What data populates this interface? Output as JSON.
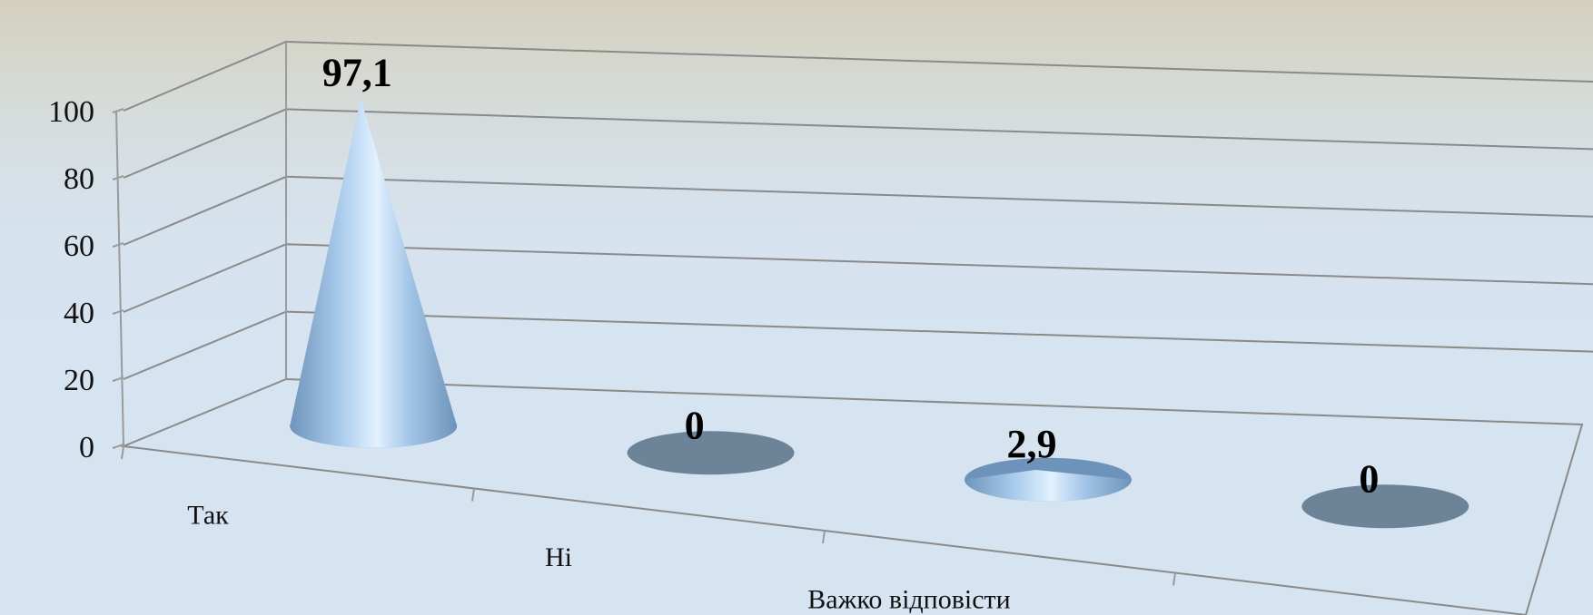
{
  "chart_data": {
    "type": "bar",
    "style": "3d-cone",
    "categories": [
      "Так",
      "Ні",
      "Важко відповісти",
      ""
    ],
    "values": [
      97.1,
      0,
      2.9,
      0
    ],
    "data_labels": [
      "97,1",
      "0",
      "2,9",
      "0"
    ],
    "y_ticks": [
      "0",
      "20",
      "40",
      "60",
      "80",
      "100"
    ],
    "ylim": [
      0,
      100
    ],
    "grid": true,
    "legend": "none",
    "colors": {
      "cone_light": "#e2f1ff",
      "cone_mid": "#a9cbec",
      "cone_dark": "#6e93ba",
      "base_ellipse": "#6c8398",
      "grid": "#8a8a8a"
    }
  }
}
